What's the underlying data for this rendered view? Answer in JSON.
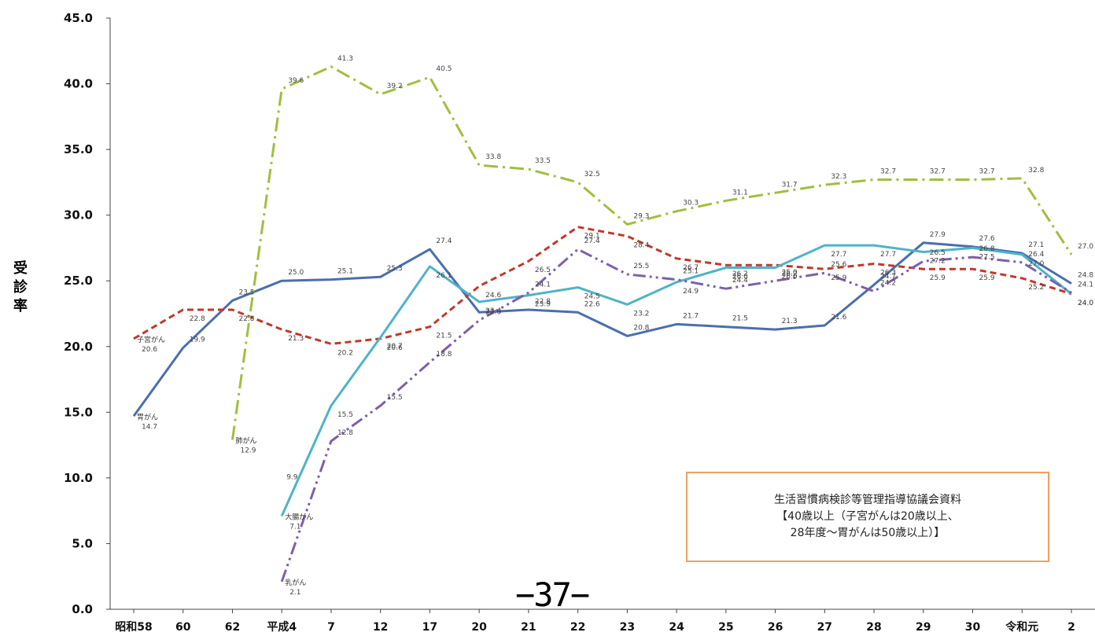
{
  "chart_data": {
    "type": "line",
    "ylabel": "受診率",
    "ylim": [
      0,
      45
    ],
    "yticks": [
      "0.0",
      "5.0",
      "10.0",
      "15.0",
      "20.0",
      "25.0",
      "30.0",
      "35.0",
      "40.0",
      "45.0"
    ],
    "categories": [
      "昭和58",
      "60",
      "62",
      "平成4",
      "7",
      "12",
      "17",
      "20",
      "21",
      "22",
      "23",
      "24",
      "25",
      "26",
      "27",
      "28",
      "29",
      "30",
      "令和元",
      "2"
    ],
    "grid": false,
    "series": [
      {
        "name": "胃がん",
        "color": "#4a6fae",
        "dash": "solid",
        "start_label": "胃がん",
        "values": [
          14.7,
          19.9,
          23.5,
          25.0,
          25.1,
          25.3,
          27.4,
          22.6,
          22.8,
          22.6,
          20.8,
          21.7,
          21.5,
          21.3,
          21.6,
          24.7,
          27.9,
          27.6,
          27.1,
          24.8
        ],
        "value_labels": [
          "14.7",
          "19.9",
          "23.5",
          "25.0",
          "25.1",
          "25.3",
          "27.4",
          "",
          "22.8",
          "22.6",
          "20.8",
          "21.7",
          "21.5",
          "21.3",
          "21.6",
          "24.7",
          "27.9",
          "27.6",
          "27.1",
          "24.8"
        ]
      },
      {
        "name": "子宮がん",
        "color": "#c0392b",
        "dash": "dashed",
        "start_label": "子宮がん",
        "values": [
          20.6,
          22.8,
          22.8,
          21.3,
          20.2,
          20.6,
          21.5,
          24.6,
          26.5,
          29.1,
          28.4,
          26.7,
          26.2,
          26.2,
          25.9,
          26.3,
          25.9,
          25.9,
          25.2,
          24.0
        ],
        "value_labels": [
          "20.6",
          "22.8",
          "22.8",
          "21.3",
          "20.2",
          "20.6",
          "21.5",
          "24.6",
          "26.5",
          "29.1",
          "28.4",
          "26.7",
          "26.2",
          "26.2",
          "25.9",
          "26.3",
          "25.9",
          "25.9",
          "25.2",
          "24.0"
        ]
      },
      {
        "name": "肺がん",
        "color": "#9fbf3f",
        "dash": "dashdot",
        "start_label": "肺がん",
        "values": [
          null,
          null,
          12.9,
          39.6,
          41.3,
          39.2,
          40.5,
          33.8,
          33.5,
          32.5,
          29.3,
          30.3,
          31.1,
          31.7,
          32.3,
          32.7,
          32.7,
          32.7,
          32.8,
          27.0
        ],
        "value_labels": [
          "",
          "",
          "12.9",
          "39.6",
          "41.3",
          "39.2",
          "40.5",
          "33.8",
          "33.5",
          "32.5",
          "29.3",
          "30.3",
          "31.1",
          "31.7",
          "32.3",
          "32.7",
          "32.7",
          "32.7",
          "32.8",
          "27.0"
        ]
      },
      {
        "name": "大腸がん",
        "color": "#4fb3c8",
        "dash": "solid",
        "start_label": "大腸がん",
        "values": [
          null,
          null,
          null,
          7.1,
          15.5,
          20.7,
          26.1,
          23.4,
          23.9,
          24.5,
          23.2,
          24.9,
          26.0,
          26.0,
          27.7,
          27.7,
          27.2,
          27.5,
          27.0,
          24.0
        ],
        "value_labels": [
          "",
          "",
          "",
          "7.1",
          "15.5",
          "20.7",
          "26.1",
          "23.4",
          "23.9",
          "24.5",
          "23.2",
          "24.9",
          "26.0",
          "26.0",
          "27.7",
          "27.7",
          "27.2",
          "27.5",
          "27.0",
          "24.0"
        ]
      },
      {
        "name": "乳がん",
        "color": "#7e5fa8",
        "dash": "dashdotdot",
        "start_label": "乳がん",
        "values": [
          null,
          null,
          null,
          2.1,
          12.8,
          15.5,
          18.8,
          22.0,
          24.1,
          27.4,
          25.5,
          25.1,
          24.4,
          25.0,
          25.6,
          24.2,
          26.5,
          26.8,
          26.4,
          24.1
        ],
        "value_labels": [
          "",
          "",
          "",
          "2.1",
          "12.8",
          "15.5",
          "18.8",
          "22.0",
          "24.1",
          "27.4",
          "25.5",
          "25.1",
          "24.4",
          "25.0",
          "25.6",
          "24.2",
          "26.5",
          "26.8",
          "26.4",
          "24.1"
        ]
      }
    ],
    "extra_label": {
      "text": "9.9",
      "x": "平成4",
      "y": 9.9
    }
  },
  "source_note": {
    "line1": "生活習慣病検診等管理指導協議会資料",
    "line2": "【40歳以上（子宮がんは20歳以上、",
    "line3": "28年度～胃がんは50歳以上）】"
  },
  "page_number": "−37−"
}
